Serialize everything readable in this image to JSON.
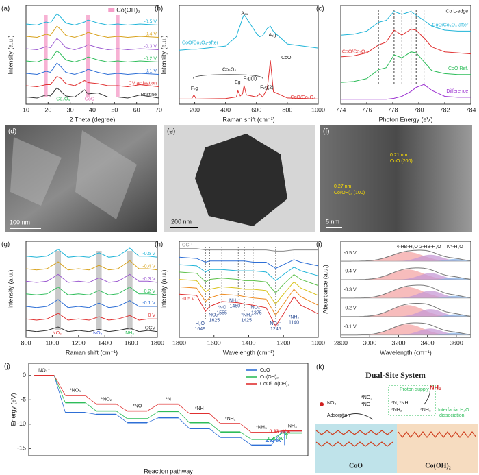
{
  "chart_data": [
    {
      "type": "line",
      "panel": "(a)",
      "xlabel": "2 Theta (degree)",
      "ylabel": "Intensity (a.u.)",
      "xlim": [
        10,
        70
      ],
      "xticks": [
        10,
        20,
        30,
        40,
        50,
        60,
        70
      ],
      "ylim": [
        0,
        9.6
      ],
      "x": [
        10,
        15,
        19,
        21,
        24,
        26,
        28,
        32,
        36.5,
        38,
        42.5,
        47,
        51.5,
        56,
        61.5,
        70
      ],
      "series": [
        {
          "name": "-0.5 V",
          "color": "#1fb4d8",
          "values": [
            7.8,
            7.7,
            8.0,
            7.9,
            8.8,
            8.4,
            7.9,
            7.7,
            8.0,
            8.2,
            7.9,
            7.7,
            7.8,
            7.7,
            7.8,
            7.7
          ]
        },
        {
          "name": "-0.4 V",
          "color": "#d8a21b",
          "values": [
            6.6,
            6.5,
            6.8,
            6.7,
            7.6,
            7.2,
            6.7,
            6.5,
            6.8,
            7.0,
            6.7,
            6.5,
            6.6,
            6.5,
            6.6,
            6.5
          ]
        },
        {
          "name": "-0.3 V",
          "color": "#9b59d0",
          "values": [
            5.4,
            5.3,
            5.6,
            5.5,
            6.4,
            6.0,
            5.5,
            5.3,
            5.6,
            5.8,
            5.5,
            5.3,
            5.4,
            5.3,
            5.4,
            5.3
          ]
        },
        {
          "name": "-0.2 V",
          "color": "#2ebd5a",
          "values": [
            4.2,
            4.1,
            4.4,
            4.3,
            5.2,
            4.8,
            4.3,
            4.1,
            4.4,
            4.6,
            4.3,
            4.1,
            4.2,
            4.1,
            4.2,
            4.1
          ]
        },
        {
          "name": "-0.1 V",
          "color": "#2e6fd6",
          "values": [
            3.0,
            2.9,
            3.2,
            3.1,
            4.0,
            3.6,
            3.1,
            2.9,
            3.2,
            3.4,
            3.1,
            2.9,
            3.0,
            2.9,
            3.0,
            2.9
          ]
        },
        {
          "name": "CV activation",
          "color": "#e03030",
          "values": [
            1.8,
            1.7,
            1.9,
            1.9,
            2.7,
            2.5,
            2.0,
            1.8,
            2.3,
            2.1,
            2.0,
            1.8,
            1.8,
            1.7,
            1.9,
            1.7
          ]
        },
        {
          "name": "Pristine",
          "color": "#333333",
          "values": [
            0.7,
            0.6,
            0.9,
            0.8,
            1.6,
            1.2,
            0.8,
            0.7,
            1.4,
            1.0,
            1.1,
            0.7,
            0.7,
            0.6,
            0.9,
            0.6
          ]
        }
      ],
      "bands": [
        19,
        38,
        51.5
      ],
      "band_color": "#f59fc9",
      "band_label": "Co(OH)₂",
      "annotations": [
        {
          "text": "Co₃O₄",
          "color": "#2ebd5a"
        },
        {
          "text": "CoO",
          "color": "#e060b0"
        }
      ]
    },
    {
      "type": "line",
      "panel": "(b)",
      "xlabel": "Raman shift (cm⁻¹)",
      "ylabel": "Intensity (a.u.)",
      "xlim": [
        100,
        1000
      ],
      "xticks": [
        200,
        400,
        600,
        800,
        1000
      ],
      "ylim": [
        0,
        9.5
      ],
      "x": [
        100,
        180,
        195,
        210,
        400,
        470,
        480,
        495,
        510,
        520,
        535,
        600,
        620,
        640,
        670,
        690,
        710,
        800,
        1000
      ],
      "series": [
        {
          "name": "CoO/Co₃O₄-after",
          "color": "#1fb4d8",
          "values": [
            5.2,
            5.3,
            5.3,
            5.3,
            5.6,
            6.5,
            7.0,
            7.6,
            8.3,
            8.6,
            8.3,
            6.8,
            6.5,
            6.6,
            7.3,
            7.5,
            7.0,
            5.8,
            5.4
          ]
        },
        {
          "name": "CoO/Co₃O₄",
          "color": "#e03030",
          "values": [
            0.5,
            0.5,
            0.9,
            0.5,
            0.55,
            0.7,
            1.3,
            0.8,
            1.0,
            1.8,
            0.9,
            0.7,
            1.0,
            0.7,
            1.5,
            4.2,
            1.2,
            0.6,
            0.5
          ]
        }
      ],
      "annotations": [
        {
          "text": "A₂ᵤ",
          "color": "#222"
        },
        {
          "text": "A₁g",
          "color": "#222"
        },
        {
          "text": "CoO",
          "color": "#222"
        },
        {
          "text": "Co₃O₄",
          "color": "#222"
        },
        {
          "text": "F₂g",
          "color": "#222"
        },
        {
          "text": "Eg",
          "color": "#222"
        },
        {
          "text": "F₂g(1)",
          "color": "#222"
        },
        {
          "text": "F₂g(2)",
          "color": "#222"
        }
      ]
    },
    {
      "type": "line",
      "panel": "(c)",
      "xlabel": "Photon Energy (eV)",
      "xlim": [
        774,
        784
      ],
      "xticks": [
        774,
        776,
        778,
        780,
        782,
        784
      ],
      "ylim": [
        -0.5,
        9.5
      ],
      "x": [
        774,
        775,
        776,
        776.9,
        777.5,
        778.1,
        778.7,
        779.4,
        779.8,
        780.4,
        781,
        782,
        783,
        784
      ],
      "series": [
        {
          "name": "CoO/Co₃O₄-after",
          "color": "#1fb4d8",
          "values": [
            6.5,
            6.6,
            6.9,
            7.8,
            8.0,
            8.9,
            8.6,
            8.9,
            8.5,
            8.0,
            7.4,
            7.0,
            6.9,
            6.9
          ]
        },
        {
          "name": "CoO/Co₃O₄",
          "color": "#e03030",
          "values": [
            4.3,
            4.4,
            4.7,
            5.5,
            5.8,
            7.0,
            6.5,
            7.1,
            7.0,
            6.2,
            5.3,
            4.8,
            4.7,
            4.6
          ]
        },
        {
          "name": "CoO Ref.",
          "color": "#2ebd5a",
          "values": [
            1.7,
            1.8,
            2.1,
            3.0,
            3.2,
            4.5,
            4.2,
            4.8,
            4.7,
            3.8,
            2.9,
            2.6,
            2.5,
            2.5
          ]
        },
        {
          "name": "Difference",
          "color": "#9b30d0",
          "values": [
            0,
            0,
            0,
            0,
            0,
            0.1,
            0.3,
            0.8,
            1.2,
            1.5,
            0.9,
            0.3,
            0.2,
            0.2
          ]
        }
      ],
      "dashed_lines": [
        776.9,
        778.1,
        778.7,
        779.4,
        779.8,
        780.4
      ],
      "annotations": [
        {
          "text": "Co L-edge",
          "color": "#222"
        }
      ]
    },
    {
      "type": "line",
      "panel": "(g)",
      "xlabel": "Raman shift (cm⁻¹)",
      "ylabel": "Intensity (a.u.)",
      "xlim": [
        800,
        1800
      ],
      "xticks": [
        800,
        1000,
        1200,
        1400,
        1600,
        1800
      ],
      "ylim": [
        0,
        8.4
      ],
      "x": [
        800,
        880,
        960,
        1045,
        1120,
        1200,
        1280,
        1355,
        1430,
        1500,
        1590,
        1660,
        1730,
        1800
      ],
      "series": [
        {
          "name": "-0.5 V",
          "color": "#1fb4d8",
          "values": [
            7.1,
            7.0,
            7.1,
            7.7,
            7.0,
            7.1,
            7.0,
            7.4,
            7.0,
            7.1,
            7.8,
            7.1,
            7.1,
            7.0
          ]
        },
        {
          "name": "-0.4 V",
          "color": "#d8a21b",
          "values": [
            6.0,
            5.9,
            6.0,
            6.6,
            5.9,
            6.0,
            5.9,
            6.3,
            5.9,
            6.0,
            6.7,
            6.0,
            6.0,
            5.9
          ]
        },
        {
          "name": "-0.3 V",
          "color": "#9b59d0",
          "values": [
            4.9,
            4.8,
            4.9,
            5.5,
            4.8,
            4.9,
            4.8,
            5.2,
            4.8,
            4.9,
            5.5,
            4.9,
            4.9,
            4.8
          ]
        },
        {
          "name": "-0.2 V",
          "color": "#2ebd5a",
          "values": [
            3.8,
            3.7,
            3.8,
            4.4,
            3.7,
            3.8,
            3.7,
            4.1,
            3.7,
            3.8,
            4.4,
            3.8,
            3.8,
            3.7
          ]
        },
        {
          "name": "-0.1 V",
          "color": "#2e6fd6",
          "values": [
            2.7,
            2.6,
            2.7,
            3.3,
            2.6,
            2.7,
            2.6,
            3.0,
            2.6,
            2.7,
            3.2,
            2.7,
            2.7,
            2.7
          ]
        },
        {
          "name": "0 V",
          "color": "#e03030",
          "values": [
            1.6,
            1.5,
            1.6,
            2.1,
            1.5,
            1.6,
            1.5,
            1.8,
            1.5,
            1.6,
            1.9,
            1.5,
            1.6,
            1.6
          ]
        },
        {
          "name": "OCV",
          "color": "#333333",
          "values": [
            0.6,
            0.5,
            0.6,
            0.9,
            0.5,
            0.6,
            0.5,
            0.7,
            0.5,
            0.6,
            0.8,
            0.5,
            0.6,
            0.5
          ]
        }
      ],
      "bands": [
        1045,
        1355,
        1590
      ],
      "band_color": "#bdbdbd",
      "annotations": [
        {
          "text": "NO₃⁻",
          "color": "#e03030"
        },
        {
          "text": "NO₂⁻",
          "color": "#2e4fd6"
        },
        {
          "text": "NH₃",
          "color": "#2ebd5a"
        }
      ]
    },
    {
      "type": "line",
      "panel": "(h)",
      "xlabel": "Wavelength (cm⁻¹)",
      "ylabel": "Intensity (a.u.)",
      "xlim": [
        1800,
        1000
      ],
      "xticks": [
        1800,
        1600,
        1400,
        1200,
        1000
      ],
      "ylim": [
        -0.5,
        7.3
      ],
      "x": [
        1800,
        1700,
        1649,
        1625,
        1555,
        1460,
        1425,
        1375,
        1300,
        1245,
        1200,
        1140,
        1100,
        1000
      ],
      "series": [
        {
          "name": "-0.5 V",
          "color": "#e03030",
          "values": [
            3.0,
            2.9,
            1.6,
            2.0,
            2.4,
            2.3,
            2.2,
            2.1,
            1.9,
            0.4,
            1.4,
            2.8,
            2.1,
            1.4
          ]
        },
        {
          "color": "#ef8a1c",
          "values": [
            3.6,
            3.5,
            2.4,
            2.7,
            3.0,
            2.9,
            2.8,
            2.7,
            2.6,
            1.3,
            2.2,
            3.4,
            2.8,
            2.1
          ]
        },
        {
          "color": "#d8c21b",
          "values": [
            4.2,
            4.1,
            3.2,
            3.4,
            3.6,
            3.5,
            3.4,
            3.4,
            3.3,
            2.2,
            3.0,
            4.0,
            3.5,
            2.9
          ]
        },
        {
          "color": "#5cc04a",
          "values": [
            4.8,
            4.7,
            4.0,
            4.2,
            4.3,
            4.2,
            4.1,
            4.1,
            4.0,
            3.1,
            3.8,
            4.6,
            4.2,
            3.7
          ]
        },
        {
          "color": "#1fb4d8",
          "values": [
            5.4,
            5.3,
            4.8,
            5.0,
            5.0,
            4.9,
            4.9,
            4.9,
            4.8,
            4.1,
            4.6,
            5.2,
            4.9,
            4.5
          ]
        },
        {
          "color": "#2e6fd6",
          "values": [
            6.0,
            5.9,
            5.6,
            5.7,
            5.7,
            5.7,
            5.7,
            5.6,
            5.6,
            5.1,
            5.4,
            5.8,
            5.6,
            5.3
          ]
        },
        {
          "name": "OCP",
          "color": "#8a8a8a",
          "values": [
            6.7,
            6.7,
            6.6,
            6.6,
            6.6,
            6.6,
            6.6,
            6.6,
            6.6,
            6.5,
            6.5,
            6.6,
            6.6,
            6.6
          ]
        }
      ],
      "peaks": [
        {
          "label": "H₂O",
          "value": 1649
        },
        {
          "label": "NO₂⁻",
          "value": 1625
        },
        {
          "label": "*NO",
          "value": 1555
        },
        {
          "label": "NH₄⁺",
          "value": 1460
        },
        {
          "label": "*NH₂",
          "value": 1425
        },
        {
          "label": "NO₃⁻",
          "value": 1375
        },
        {
          "label": "NO₂⁻",
          "value": 1245
        },
        {
          "label": "*NH₂",
          "value": 1140
        }
      ]
    },
    {
      "type": "area",
      "panel": "(i)",
      "xlabel": "Wavelength (cm⁻¹)",
      "ylabel": "Absorbance (a.u.)",
      "xlim": [
        2800,
        3700
      ],
      "xticks": [
        2800,
        3000,
        3200,
        3400,
        3600
      ],
      "ylim": [
        0,
        5.2
      ],
      "components": [
        {
          "name": "4-HB-H₂O",
          "color": "#f4a6a6",
          "center": 3260,
          "width": 110
        },
        {
          "name": "2-HB-H₂O",
          "color": "#c79ad6",
          "center": 3420,
          "width": 80
        },
        {
          "name": "K⁺-H₂O",
          "color": "#8ab4e8",
          "center": 3590,
          "width": 60
        }
      ],
      "rows": [
        {
          "name": "-0.5 V",
          "heights": [
            0.5,
            0.35,
            0.12
          ]
        },
        {
          "name": "-0.4 V",
          "heights": [
            0.55,
            0.35,
            0.12
          ]
        },
        {
          "name": "-0.3 V",
          "heights": [
            0.6,
            0.4,
            0.12
          ]
        },
        {
          "name": "-0.2 V",
          "heights": [
            0.62,
            0.4,
            0.12
          ]
        },
        {
          "name": "-0.1 V",
          "heights": [
            0.58,
            0.35,
            0.12
          ]
        }
      ]
    },
    {
      "type": "step",
      "panel": "(j)",
      "xlabel": "Reaction pathway",
      "ylabel": "Energy (eV)",
      "ylim": [
        -16.5,
        2.5
      ],
      "yticks": [
        0,
        -5,
        -10,
        -15
      ],
      "legend": "upper right",
      "categories": [
        "NO₃⁻",
        "*NO₃",
        "*NO₂",
        "*NO",
        "*N",
        "*NH",
        "*NH₂",
        "*NH₃",
        "NH₃"
      ],
      "series": [
        {
          "name": "CoO",
          "color": "#2e6fd6",
          "values": [
            0,
            -7.6,
            -8.0,
            -9.7,
            -8.7,
            -10.9,
            -12.7,
            -14.3,
            -11.38
          ],
          "barrier": 2.92,
          "barrier_label": "2.92 eV"
        },
        {
          "name": "Co(OH)₂",
          "color": "#2ebd5a",
          "values": [
            0,
            -5.6,
            -7.3,
            -8.9,
            -7.4,
            -9.7,
            -11.6,
            -13.1,
            -11.8
          ],
          "barrier": 1.3,
          "barrier_label": "1.30 eV"
        },
        {
          "name": "CoO/Co(OH)₂",
          "color": "#e03030",
          "values": [
            0,
            -4.1,
            -5.9,
            -7.3,
            -5.9,
            -7.8,
            -9.9,
            -11.7,
            -11.37
          ],
          "barrier": 0.33,
          "barrier_label": "0.33 eV"
        }
      ]
    }
  ],
  "images": [
    {
      "panel": "(d)",
      "scale_bar": "100 nm"
    },
    {
      "panel": "(e)",
      "scale_bar": "200 nm"
    },
    {
      "panel": "(f)",
      "scale_bar": "5 nm",
      "annotations": [
        "0.27 nm",
        "Co(OH)₂ (100)",
        "0.21 nm",
        "CoO (200)"
      ]
    }
  ],
  "diagram": {
    "panel": "(k)",
    "title": "Dual-Site System",
    "product": "NH₃",
    "reactant": "NO₃⁻",
    "step1": "Adsorption",
    "int1": "*NO₃",
    "int2": "*NO",
    "proton": "Proton supply",
    "int3": "*N, *NH",
    "int4": "*NH₂",
    "int5": "*NH₃",
    "water1": "Interfacial H₂O",
    "water2": "dissociation",
    "left": "CoO",
    "right": "Co(OH)₂"
  }
}
